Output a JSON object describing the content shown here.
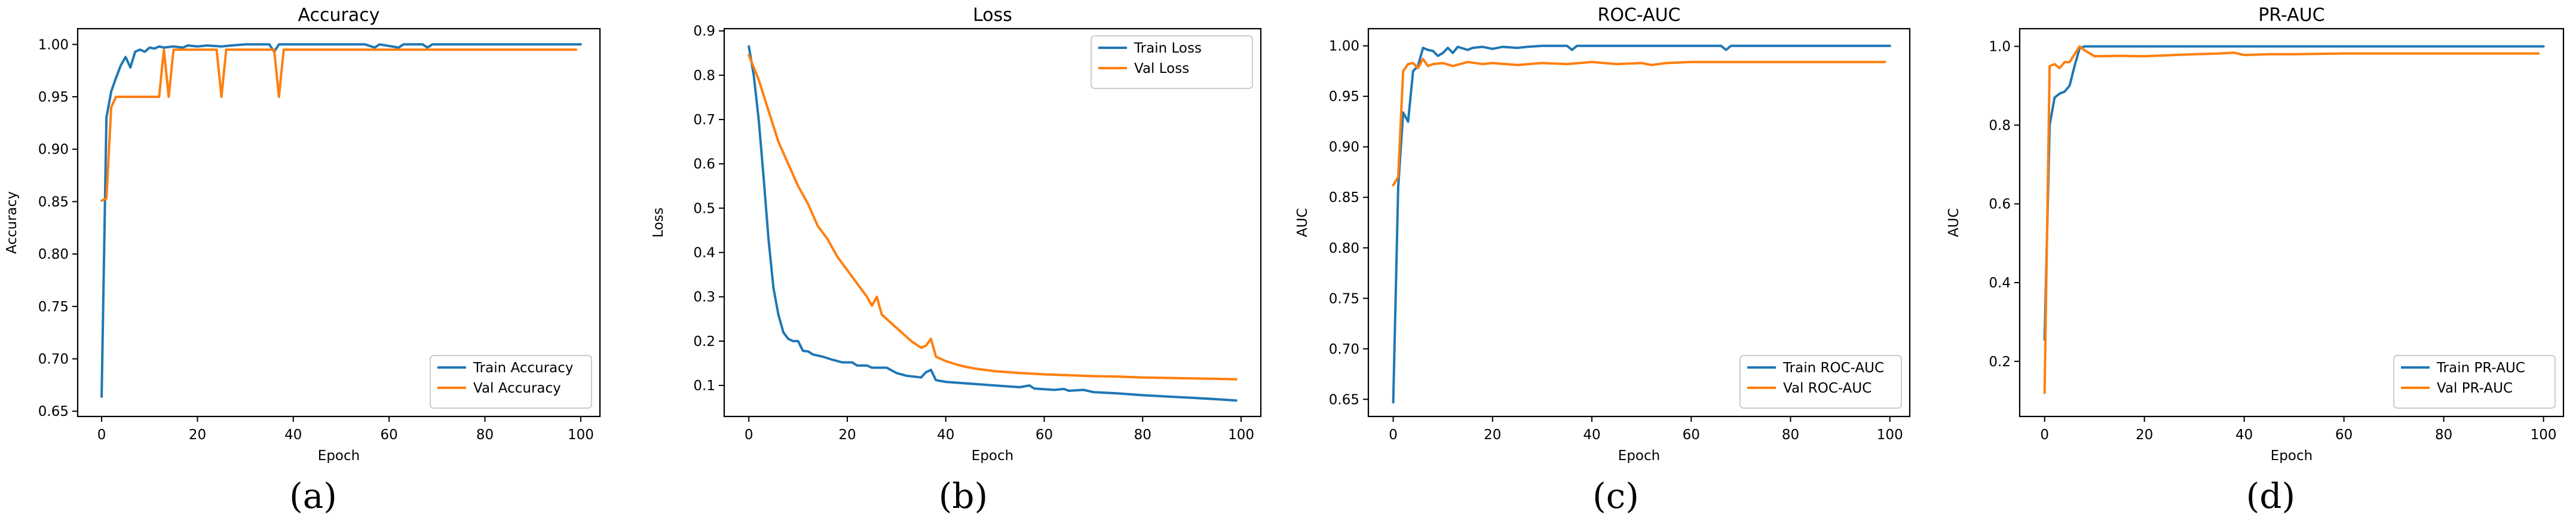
{
  "chart_data": [
    {
      "type": "line",
      "panel_label": "(a)",
      "title": "Accuracy",
      "xlabel": "Epoch",
      "ylabel": "Accuracy",
      "xlim": [
        -5,
        104
      ],
      "ylim": [
        0.645,
        1.015
      ],
      "xticks": [
        0,
        20,
        40,
        60,
        80,
        100
      ],
      "yticks": [
        0.65,
        0.7,
        0.75,
        0.8,
        0.85,
        0.9,
        0.95,
        1.0
      ],
      "ytick_labels": [
        "0.65",
        "0.70",
        "0.75",
        "0.80",
        "0.85",
        "0.90",
        "0.95",
        "1.00"
      ],
      "grid": false,
      "legend_position": "lower-right",
      "series": [
        {
          "name": "Train Accuracy",
          "color": "#1f77b4",
          "points": [
            [
              0,
              0.664
            ],
            [
              1,
              0.93
            ],
            [
              2,
              0.955
            ],
            [
              3,
              0.968
            ],
            [
              4,
              0.98
            ],
            [
              5,
              0.988
            ],
            [
              6,
              0.978
            ],
            [
              7,
              0.993
            ],
            [
              8,
              0.995
            ],
            [
              9,
              0.993
            ],
            [
              10,
              0.997
            ],
            [
              11,
              0.996
            ],
            [
              12,
              0.998
            ],
            [
              13,
              0.997
            ],
            [
              15,
              0.998
            ],
            [
              17,
              0.997
            ],
            [
              18,
              0.999
            ],
            [
              20,
              0.998
            ],
            [
              22,
              0.999
            ],
            [
              25,
              0.998
            ],
            [
              27,
              0.999
            ],
            [
              30,
              1.0
            ],
            [
              35,
              1.0
            ],
            [
              36,
              0.993
            ],
            [
              37,
              1.0
            ],
            [
              40,
              1.0
            ],
            [
              55,
              1.0
            ],
            [
              57,
              0.997
            ],
            [
              58,
              1.0
            ],
            [
              62,
              0.997
            ],
            [
              63,
              1.0
            ],
            [
              67,
              1.0
            ],
            [
              68,
              0.997
            ],
            [
              69,
              1.0
            ],
            [
              100,
              1.0
            ]
          ]
        },
        {
          "name": "Val Accuracy",
          "color": "#ff7f0e",
          "points": [
            [
              0,
              0.851
            ],
            [
              1,
              0.853
            ],
            [
              2,
              0.94
            ],
            [
              3,
              0.95
            ],
            [
              12,
              0.95
            ],
            [
              13,
              0.995
            ],
            [
              14,
              0.95
            ],
            [
              15,
              0.995
            ],
            [
              24,
              0.995
            ],
            [
              25,
              0.95
            ],
            [
              26,
              0.995
            ],
            [
              36,
              0.995
            ],
            [
              37,
              0.95
            ],
            [
              38,
              0.995
            ],
            [
              99,
              0.995
            ]
          ]
        }
      ]
    },
    {
      "type": "line",
      "panel_label": "(b)",
      "title": "Loss",
      "xlabel": "Epoch",
      "ylabel": "Loss",
      "xlim": [
        -5,
        104
      ],
      "ylim": [
        0.03,
        0.905
      ],
      "xticks": [
        0,
        20,
        40,
        60,
        80,
        100
      ],
      "yticks": [
        0.1,
        0.2,
        0.3,
        0.4,
        0.5,
        0.6,
        0.7,
        0.8,
        0.9
      ],
      "ytick_labels": [
        "0.1",
        "0.2",
        "0.3",
        "0.4",
        "0.5",
        "0.6",
        "0.7",
        "0.8",
        "0.9"
      ],
      "grid": false,
      "legend_position": "upper-right",
      "series": [
        {
          "name": "Train Loss",
          "color": "#1f77b4",
          "points": [
            [
              0,
              0.865
            ],
            [
              1,
              0.8
            ],
            [
              2,
              0.7
            ],
            [
              3,
              0.57
            ],
            [
              4,
              0.43
            ],
            [
              5,
              0.32
            ],
            [
              6,
              0.26
            ],
            [
              7,
              0.22
            ],
            [
              8,
              0.205
            ],
            [
              9,
              0.2
            ],
            [
              10,
              0.2
            ],
            [
              11,
              0.178
            ],
            [
              12,
              0.177
            ],
            [
              13,
              0.17
            ],
            [
              15,
              0.165
            ],
            [
              17,
              0.158
            ],
            [
              19,
              0.152
            ],
            [
              21,
              0.152
            ],
            [
              22,
              0.145
            ],
            [
              24,
              0.145
            ],
            [
              25,
              0.14
            ],
            [
              28,
              0.14
            ],
            [
              30,
              0.128
            ],
            [
              32,
              0.122
            ],
            [
              35,
              0.118
            ],
            [
              36,
              0.13
            ],
            [
              37,
              0.135
            ],
            [
              38,
              0.112
            ],
            [
              40,
              0.108
            ],
            [
              45,
              0.104
            ],
            [
              50,
              0.1
            ],
            [
              55,
              0.096
            ],
            [
              57,
              0.1
            ],
            [
              58,
              0.093
            ],
            [
              62,
              0.09
            ],
            [
              64,
              0.092
            ],
            [
              65,
              0.088
            ],
            [
              68,
              0.09
            ],
            [
              70,
              0.085
            ],
            [
              75,
              0.082
            ],
            [
              80,
              0.078
            ],
            [
              85,
              0.075
            ],
            [
              90,
              0.072
            ],
            [
              95,
              0.069
            ],
            [
              99,
              0.066
            ]
          ]
        },
        {
          "name": "Val Loss",
          "color": "#ff7f0e",
          "points": [
            [
              0,
              0.845
            ],
            [
              2,
              0.79
            ],
            [
              4,
              0.72
            ],
            [
              6,
              0.65
            ],
            [
              8,
              0.6
            ],
            [
              10,
              0.55
            ],
            [
              12,
              0.51
            ],
            [
              14,
              0.46
            ],
            [
              16,
              0.43
            ],
            [
              18,
              0.39
            ],
            [
              20,
              0.36
            ],
            [
              22,
              0.33
            ],
            [
              24,
              0.3
            ],
            [
              25,
              0.28
            ],
            [
              26,
              0.3
            ],
            [
              27,
              0.26
            ],
            [
              29,
              0.24
            ],
            [
              31,
              0.22
            ],
            [
              33,
              0.2
            ],
            [
              35,
              0.185
            ],
            [
              36,
              0.19
            ],
            [
              37,
              0.205
            ],
            [
              38,
              0.165
            ],
            [
              40,
              0.155
            ],
            [
              42,
              0.148
            ],
            [
              44,
              0.142
            ],
            [
              46,
              0.138
            ],
            [
              50,
              0.132
            ],
            [
              55,
              0.128
            ],
            [
              60,
              0.125
            ],
            [
              65,
              0.123
            ],
            [
              70,
              0.121
            ],
            [
              75,
              0.12
            ],
            [
              80,
              0.118
            ],
            [
              85,
              0.117
            ],
            [
              90,
              0.116
            ],
            [
              95,
              0.115
            ],
            [
              99,
              0.114
            ]
          ]
        }
      ]
    },
    {
      "type": "line",
      "panel_label": "(c)",
      "title": "ROC-AUC",
      "xlabel": "Epoch",
      "ylabel": "AUC",
      "xlim": [
        -5,
        104
      ],
      "ylim": [
        0.633,
        1.017
      ],
      "xticks": [
        0,
        20,
        40,
        60,
        80,
        100
      ],
      "yticks": [
        0.65,
        0.7,
        0.75,
        0.8,
        0.85,
        0.9,
        0.95,
        1.0
      ],
      "ytick_labels": [
        "0.65",
        "0.70",
        "0.75",
        "0.80",
        "0.85",
        "0.90",
        "0.95",
        "1.00"
      ],
      "grid": false,
      "legend_position": "lower-right",
      "series": [
        {
          "name": "Train ROC-AUC",
          "color": "#1f77b4",
          "points": [
            [
              0,
              0.647
            ],
            [
              1,
              0.86
            ],
            [
              2,
              0.934
            ],
            [
              3,
              0.925
            ],
            [
              4,
              0.975
            ],
            [
              5,
              0.98
            ],
            [
              6,
              0.998
            ],
            [
              7,
              0.996
            ],
            [
              8,
              0.995
            ],
            [
              9,
              0.99
            ],
            [
              10,
              0.993
            ],
            [
              11,
              0.998
            ],
            [
              12,
              0.993
            ],
            [
              13,
              0.999
            ],
            [
              15,
              0.996
            ],
            [
              16,
              0.998
            ],
            [
              18,
              0.999
            ],
            [
              20,
              0.997
            ],
            [
              22,
              0.999
            ],
            [
              25,
              0.998
            ],
            [
              27,
              0.999
            ],
            [
              30,
              1.0
            ],
            [
              35,
              1.0
            ],
            [
              36,
              0.996
            ],
            [
              37,
              1.0
            ],
            [
              66,
              1.0
            ],
            [
              67,
              0.996
            ],
            [
              68,
              1.0
            ],
            [
              100,
              1.0
            ]
          ]
        },
        {
          "name": "Val ROC-AUC",
          "color": "#ff7f0e",
          "points": [
            [
              0,
              0.862
            ],
            [
              1,
              0.87
            ],
            [
              2,
              0.975
            ],
            [
              3,
              0.982
            ],
            [
              4,
              0.983
            ],
            [
              5,
              0.978
            ],
            [
              6,
              0.987
            ],
            [
              7,
              0.98
            ],
            [
              8,
              0.982
            ],
            [
              10,
              0.983
            ],
            [
              12,
              0.98
            ],
            [
              15,
              0.984
            ],
            [
              18,
              0.982
            ],
            [
              20,
              0.983
            ],
            [
              25,
              0.981
            ],
            [
              30,
              0.983
            ],
            [
              35,
              0.982
            ],
            [
              40,
              0.984
            ],
            [
              45,
              0.982
            ],
            [
              50,
              0.983
            ],
            [
              52,
              0.981
            ],
            [
              55,
              0.983
            ],
            [
              60,
              0.984
            ],
            [
              70,
              0.984
            ],
            [
              80,
              0.984
            ],
            [
              90,
              0.984
            ],
            [
              99,
              0.984
            ]
          ]
        }
      ]
    },
    {
      "type": "line",
      "panel_label": "(d)",
      "title": "PR-AUC",
      "xlabel": "Epoch",
      "ylabel": "AUC",
      "xlim": [
        -5,
        104
      ],
      "ylim": [
        0.06,
        1.045
      ],
      "xticks": [
        0,
        20,
        40,
        60,
        80,
        100
      ],
      "yticks": [
        0.2,
        0.4,
        0.6,
        0.8,
        1.0
      ],
      "ytick_labels": [
        "0.2",
        "0.4",
        "0.6",
        "0.8",
        "1.0"
      ],
      "grid": false,
      "legend_position": "lower-right",
      "series": [
        {
          "name": "Train PR-AUC",
          "color": "#1f77b4",
          "points": [
            [
              0,
              0.255
            ],
            [
              1,
              0.8
            ],
            [
              2,
              0.87
            ],
            [
              3,
              0.88
            ],
            [
              4,
              0.885
            ],
            [
              5,
              0.9
            ],
            [
              6,
              0.95
            ],
            [
              7,
              0.995
            ],
            [
              8,
              1.0
            ],
            [
              100,
              1.0
            ]
          ]
        },
        {
          "name": "Val PR-AUC",
          "color": "#ff7f0e",
          "points": [
            [
              0,
              0.12
            ],
            [
              1,
              0.95
            ],
            [
              2,
              0.955
            ],
            [
              3,
              0.945
            ],
            [
              4,
              0.96
            ],
            [
              5,
              0.96
            ],
            [
              6,
              0.98
            ],
            [
              7,
              1.0
            ],
            [
              8,
              0.99
            ],
            [
              10,
              0.975
            ],
            [
              15,
              0.976
            ],
            [
              20,
              0.975
            ],
            [
              30,
              0.98
            ],
            [
              35,
              0.982
            ],
            [
              38,
              0.984
            ],
            [
              40,
              0.978
            ],
            [
              45,
              0.98
            ],
            [
              50,
              0.98
            ],
            [
              60,
              0.982
            ],
            [
              70,
              0.982
            ],
            [
              80,
              0.982
            ],
            [
              90,
              0.982
            ],
            [
              99,
              0.982
            ]
          ]
        }
      ]
    }
  ]
}
